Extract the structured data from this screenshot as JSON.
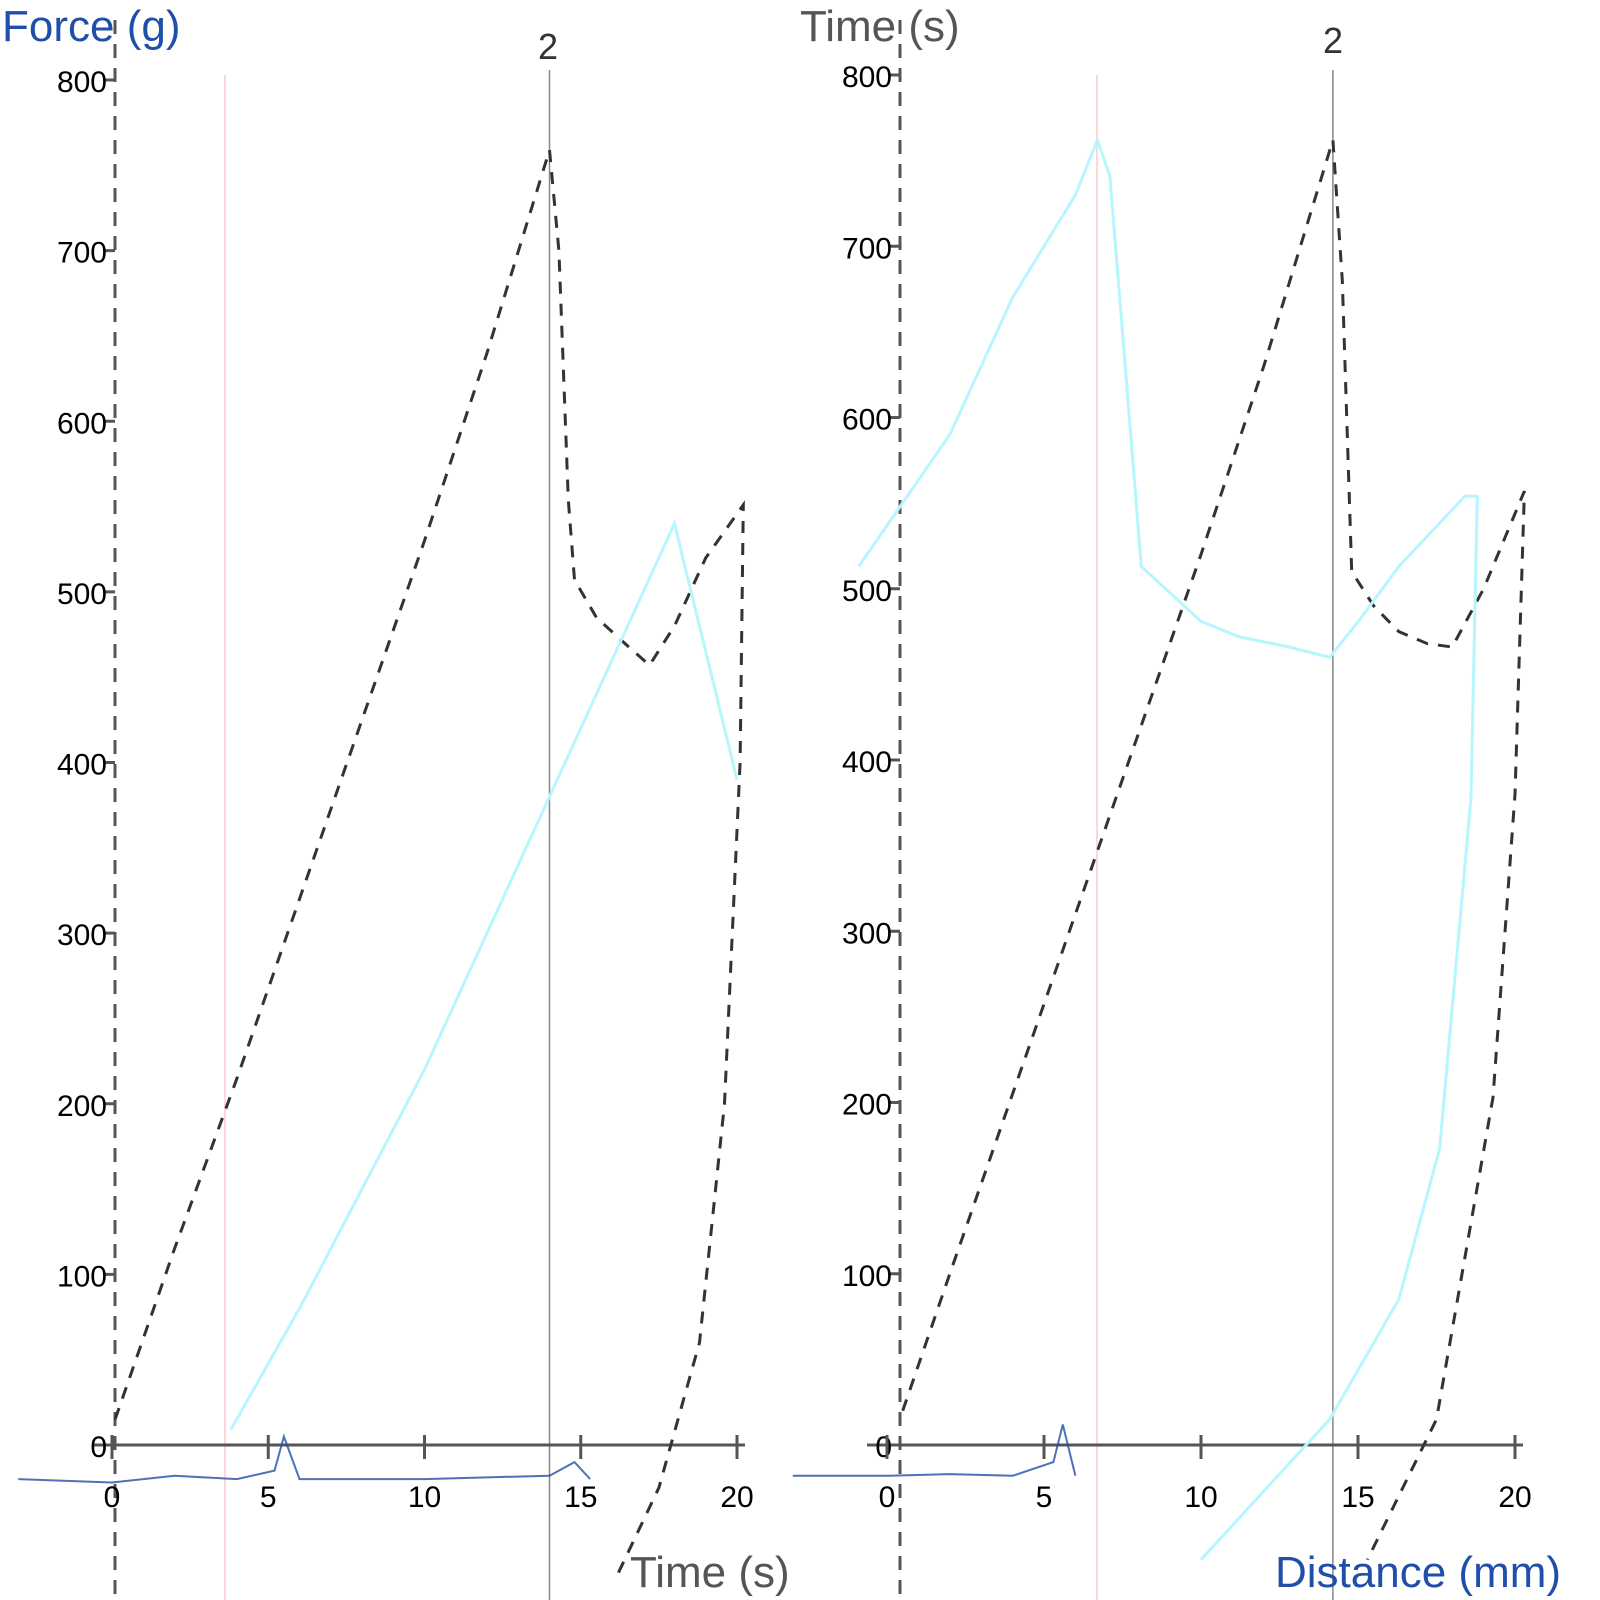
{
  "chart_data": [
    {
      "type": "line",
      "ylabel": "Force (g)",
      "xlabel": "Time (s)",
      "peak_marker": "2",
      "xlim": [
        0,
        20
      ],
      "ylim": [
        0,
        800
      ],
      "xticks": [
        "0",
        "5",
        "10",
        "15",
        "20"
      ],
      "yticks": [
        "0",
        "100",
        "200",
        "300",
        "400",
        "500",
        "600",
        "700",
        "800"
      ],
      "grid": false,
      "colors": {
        "force": "#333333",
        "overlay": "#b8f6ff",
        "marker": "#888888",
        "start_marker": "#ffd6dc",
        "axis_label": "#1f4fa8"
      },
      "series": [
        {
          "style": "dashed",
          "x": [
            0.1,
            2,
            4,
            6,
            8,
            10,
            12,
            14.0,
            14.3,
            14.6,
            14.8,
            15.5,
            16.4,
            17.2,
            18,
            19,
            20.2,
            20.1,
            19.6,
            18.8,
            17.5,
            16.2
          ],
          "y": [
            15,
            115,
            215,
            320,
            425,
            530,
            640,
            759,
            700,
            554,
            507,
            485,
            470,
            457,
            480,
            520,
            551,
            400,
            200,
            60,
            -25,
            -75
          ]
        },
        {
          "style": "solid",
          "x": [
            3.8,
            6,
            8,
            10,
            12,
            14,
            16,
            18,
            20
          ],
          "y": [
            9,
            80,
            150,
            220,
            300,
            380,
            460,
            540,
            390
          ]
        },
        {
          "style": "noise",
          "x": [
            -3,
            0,
            2,
            4,
            5.2,
            5.5,
            6,
            10,
            14,
            14.8,
            15.3
          ],
          "y": [
            -20,
            -22,
            -18,
            -20,
            -15,
            5,
            -20,
            -20,
            -18,
            -10,
            -20
          ]
        }
      ]
    },
    {
      "type": "line",
      "ylabel": "Time (s)",
      "xlabel": "Distance (mm)",
      "peak_marker": "2",
      "xlim": [
        0,
        20
      ],
      "ylim": [
        0,
        800
      ],
      "xticks": [
        "0",
        "5",
        "10",
        "15",
        "20"
      ],
      "yticks": [
        "0",
        "100",
        "200",
        "300",
        "400",
        "500",
        "600",
        "700",
        "800"
      ],
      "grid": false,
      "colors": {
        "force": "#333333",
        "overlay": "#b8f6ff",
        "marker": "#888888",
        "start_marker": "#ffd6dc",
        "axis_label": "#1f4fa8"
      },
      "series": [
        {
          "style": "dashed",
          "x": [
            0.5,
            2,
            4,
            6,
            8,
            10,
            12,
            14.2,
            14.5,
            14.8,
            15.5,
            16.3,
            17.2,
            18,
            19,
            20.3,
            20.0,
            19.3,
            17.5,
            15.3
          ],
          "y": [
            20,
            100,
            205,
            310,
            415,
            520,
            630,
            762,
            680,
            510,
            490,
            475,
            468,
            466,
            500,
            557,
            380,
            203,
            15,
            -67
          ]
        },
        {
          "style": "solid",
          "x": [
            -0.9,
            2,
            4,
            6,
            6.7,
            7.1,
            8.1,
            10,
            11.2,
            12.8,
            14.1,
            15.1,
            16.3,
            18.4,
            18.8,
            18.6,
            17.6,
            16.3,
            14.1,
            10
          ],
          "y": [
            513,
            590,
            670,
            730,
            762,
            741,
            513,
            481,
            472,
            466,
            460,
            483,
            513,
            554,
            554,
            378,
            173,
            85,
            15,
            -67
          ]
        },
        {
          "style": "noise",
          "x": [
            -3,
            0,
            2,
            4,
            5.3,
            5.6,
            6
          ],
          "y": [
            -18,
            -18,
            -17,
            -18,
            -10,
            12,
            -18
          ]
        }
      ]
    }
  ]
}
